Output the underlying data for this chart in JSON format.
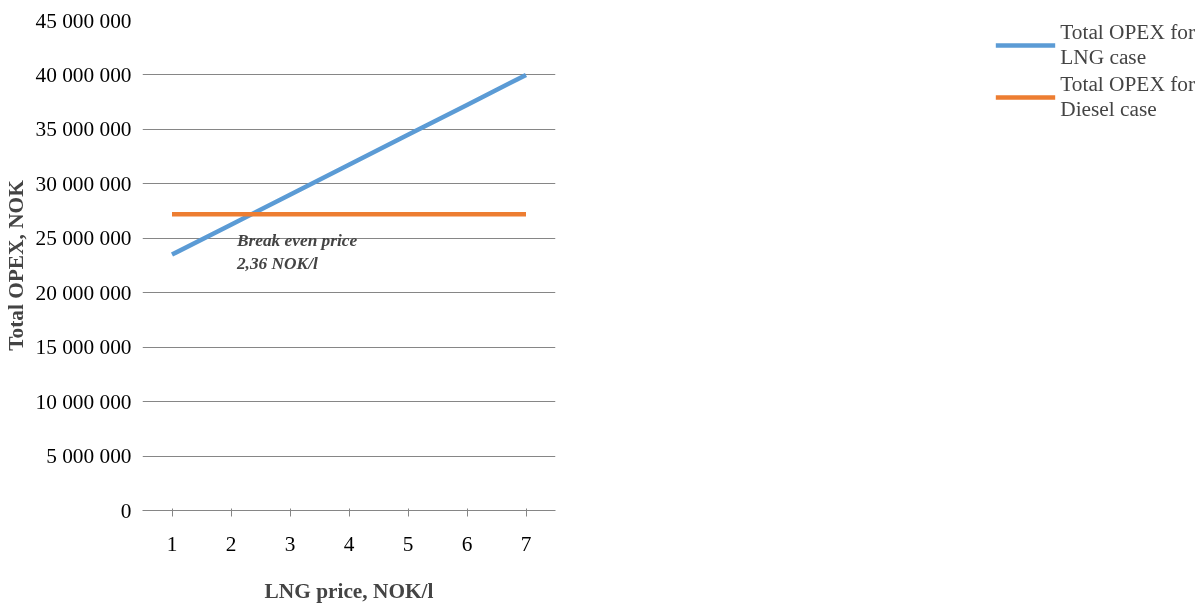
{
  "chart_data": {
    "type": "line",
    "xlabel": "LNG price, NOK/l",
    "ylabel": "Total OPEX, NOK",
    "categories": [
      "1",
      "2",
      "3",
      "4",
      "5",
      "6",
      "7"
    ],
    "series": [
      {
        "name": "Total OPEX for LNG case",
        "color": "#5b9bd5",
        "values": [
          23500000,
          26250000,
          29000000,
          31750000,
          34500000,
          37250000,
          40000000
        ]
      },
      {
        "name": "Total OPEX for Diesel case",
        "color": "#ed7d31",
        "values": [
          27200000,
          27200000,
          27200000,
          27200000,
          27200000,
          27200000,
          27200000
        ]
      }
    ],
    "ylim": [
      0,
      45000000
    ],
    "yticks": [
      {
        "value": 0,
        "label": "0"
      },
      {
        "value": 5000000,
        "label": "5 000 000"
      },
      {
        "value": 10000000,
        "label": "10 000 000"
      },
      {
        "value": 15000000,
        "label": "15 000 000"
      },
      {
        "value": 20000000,
        "label": "20 000 000"
      },
      {
        "value": 25000000,
        "label": "25 000 000"
      },
      {
        "value": 30000000,
        "label": "30 000 000"
      },
      {
        "value": 35000000,
        "label": "35 000 000"
      },
      {
        "value": 40000000,
        "label": "40 000 000"
      },
      {
        "value": 45000000,
        "label": "45 000 000"
      }
    ],
    "annotations": [
      "Break even price\n2,36 NOK/l"
    ],
    "grid": "y",
    "legend": "right",
    "marker": "none",
    "line_style": "solid"
  }
}
